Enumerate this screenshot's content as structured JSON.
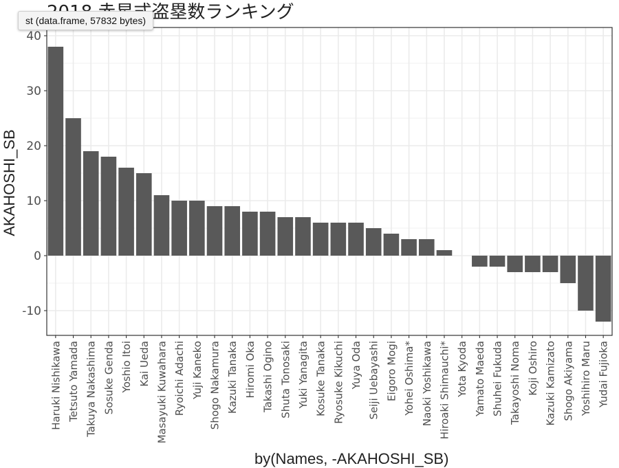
{
  "tooltip": "st (data.frame, 57832 bytes)",
  "chart_data": {
    "type": "bar",
    "title": "2018 赤星式盗塁数ランキング",
    "xlabel": "by(Names, -AKAHOSHI_SB)",
    "ylabel": "AKAHOSHI_SB",
    "ylim": [
      -14.5,
      41.5
    ],
    "yticks": [
      -10,
      0,
      10,
      20,
      30,
      40
    ],
    "grid": true,
    "categories": [
      "Haruki Nishikawa",
      "Tetsuto Yamada",
      "Takuya Nakashima",
      "Sosuke Genda",
      "Yoshio Itoi",
      "Kai Ueda",
      "Masayuki Kuwahara",
      "Ryoichi Adachi",
      "Yuji Kaneko",
      "Shogo Nakamura",
      "Kazuki Tanaka",
      "Hiromi Oka",
      "Takashi Ogino",
      "Shuta Tonosaki",
      "Yuki Yanagita",
      "Kosuke Tanaka",
      "Ryosuke Kikuchi",
      "Yuya Oda",
      "Seiji Uebayashi",
      "Eigoro Mogi",
      "Yohei Oshima*",
      "Naoki Yoshikawa",
      "Hiroaki Shimauchi*",
      "Yota Kyoda",
      "Yamato Maeda",
      "Shuhei Fukuda",
      "Takayoshi Noma",
      "Koji Oshiro",
      "Kazuki Kamizato",
      "Shogo Akiyama",
      "Yoshihiro Maru",
      "Yudai Fujioka"
    ],
    "values": [
      38,
      25,
      19,
      18,
      16,
      15,
      11,
      10,
      10,
      9,
      9,
      8,
      8,
      7,
      7,
      6,
      6,
      6,
      5,
      4,
      3,
      3,
      1,
      0,
      -2,
      -2,
      -3,
      -3,
      -3,
      -5,
      -10,
      -12
    ],
    "bar_color": "#595959",
    "grid_color": "#ebebeb",
    "panel_border_color": "#333333"
  }
}
